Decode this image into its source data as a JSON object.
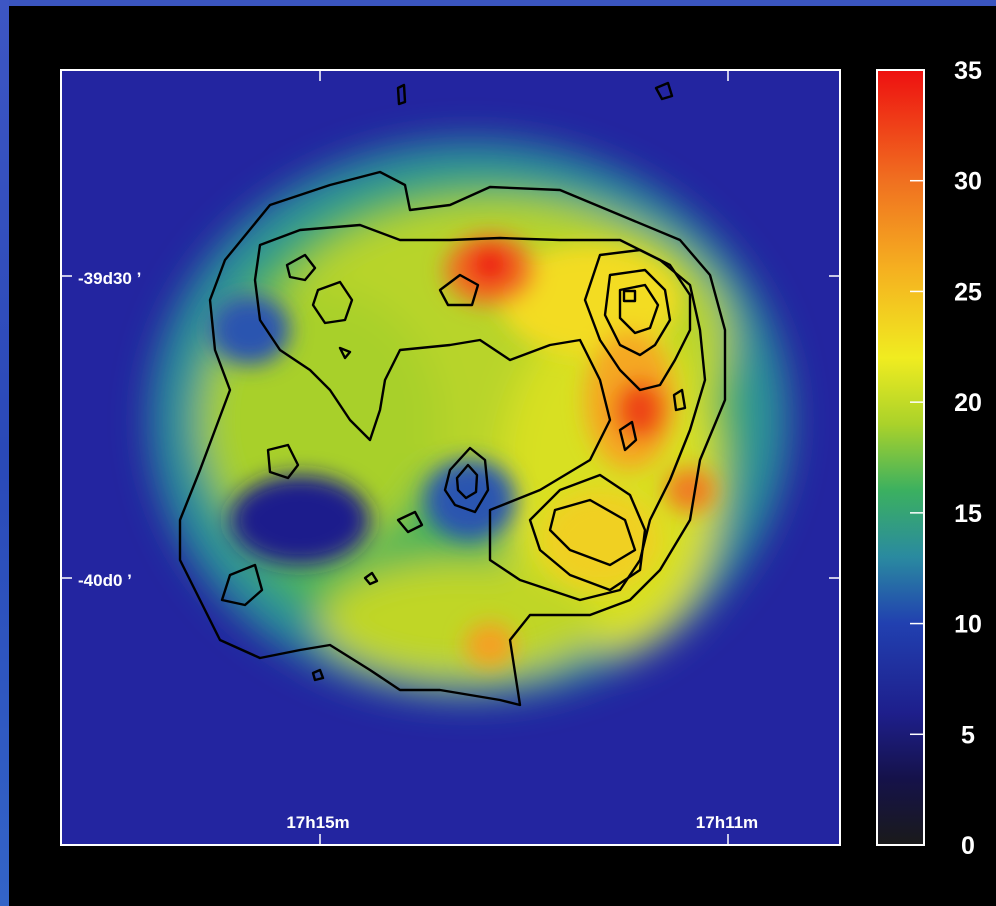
{
  "chart_data": {
    "type": "heatmap",
    "title": "",
    "x_axis": {
      "label": "",
      "ticks": [
        "17h15m",
        "17h11m"
      ],
      "direction": "decreasing-right-ascension"
    },
    "y_axis": {
      "label": "",
      "ticks": [
        "-39d30 ’",
        "-40d0 ’"
      ]
    },
    "colorbar": {
      "min": 0,
      "max": 35,
      "ticks": [
        0,
        5,
        10,
        15,
        20,
        25,
        30,
        35
      ],
      "colormap": [
        {
          "value": 0,
          "color": "#1a1a1a"
        },
        {
          "value": 3,
          "color": "#15124a"
        },
        {
          "value": 6,
          "color": "#1e1f8c"
        },
        {
          "value": 10,
          "color": "#2140b0"
        },
        {
          "value": 13,
          "color": "#2a8aa0"
        },
        {
          "value": 16,
          "color": "#3bb060"
        },
        {
          "value": 19,
          "color": "#aad22a"
        },
        {
          "value": 22,
          "color": "#f0ec20"
        },
        {
          "value": 26,
          "color": "#f5b020"
        },
        {
          "value": 30,
          "color": "#f07020"
        },
        {
          "value": 35,
          "color": "#ee1010"
        }
      ]
    },
    "contours": true,
    "contour_color": "#000000",
    "background_level": 8,
    "peak_level": 34
  }
}
